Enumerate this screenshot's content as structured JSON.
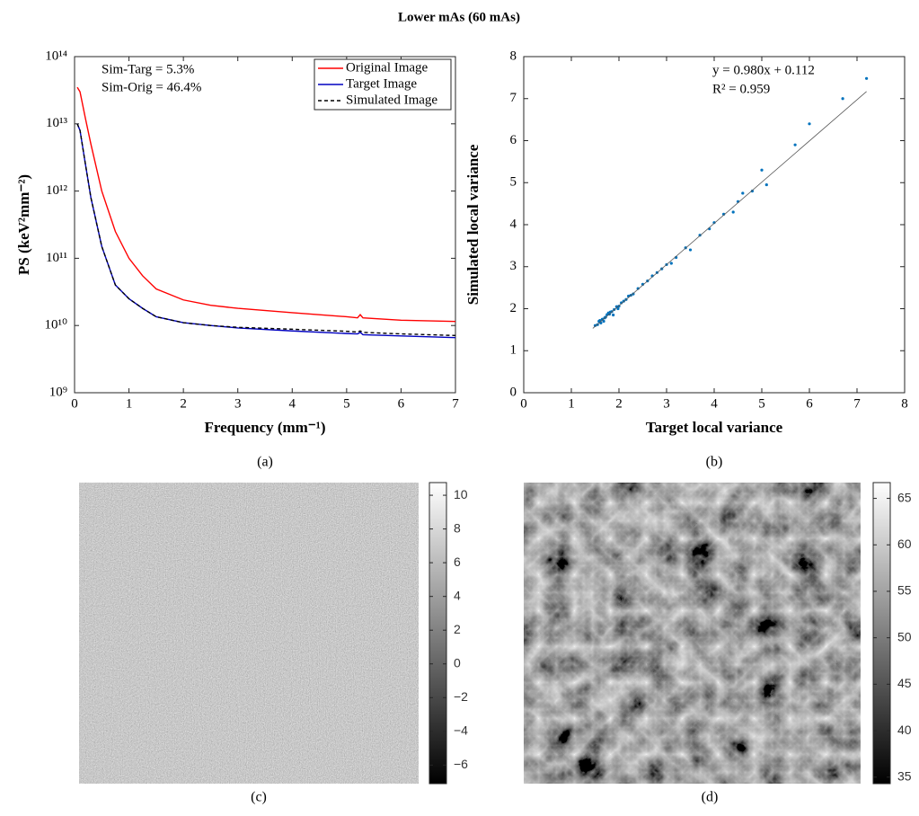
{
  "title": "Lower mAs (60 mAs)",
  "chart_data": [
    {
      "type": "line",
      "caption": "(a)",
      "xlabel": "Frequency (mm⁻¹)",
      "ylabel": "PS (keV²mm⁻²)",
      "log_y": true,
      "legend": "upper right",
      "annotations": [
        "Sim-Targ = 5.3%",
        "Sim-Orig = 46.4%"
      ],
      "x": [
        0.05,
        0.1,
        0.2,
        0.3,
        0.5,
        0.75,
        1,
        1.25,
        1.5,
        2,
        2.5,
        3,
        4,
        5,
        5.2,
        5.25,
        5.3,
        6,
        7
      ],
      "series": [
        {
          "name": "Original Image",
          "color": "#ff0000",
          "dash": false,
          "values": [
            35000000000000.0,
            30000000000000.0,
            12000000000000.0,
            5000000000000.0,
            1000000000000.0,
            250000000000.0,
            100000000000.0,
            55000000000.0,
            35000000000.0,
            24000000000.0,
            20000000000.0,
            18000000000.0,
            15500000000.0,
            13500000000.0,
            13000000000.0,
            14500000000.0,
            13000000000.0,
            12000000000.0,
            11500000000.0
          ]
        },
        {
          "name": "Target Image",
          "color": "#0000c0",
          "dash": false,
          "values": [
            10000000000000.0,
            8000000000000.0,
            2500000000000.0,
            800000000000.0,
            150000000000.0,
            40000000000.0,
            25000000000.0,
            18000000000.0,
            13500000000.0,
            11000000000.0,
            10000000000.0,
            9200000000.0,
            8300000000.0,
            7600000000.0,
            7500000000.0,
            7900000000.0,
            7300000000.0,
            7000000000.0,
            6600000000.0
          ]
        },
        {
          "name": "Simulated Image",
          "color": "#000000",
          "dash": true,
          "values": [
            10000000000000.0,
            8000000000000.0,
            2500000000000.0,
            800000000000.0,
            150000000000.0,
            40000000000.0,
            25000000000.0,
            18000000000.0,
            13500000000.0,
            11000000000.0,
            10000000000.0,
            9400000000.0,
            8800000000.0,
            8200000000.0,
            8000000000.0,
            8300000000.0,
            7900000000.0,
            7500000000.0,
            7100000000.0
          ]
        }
      ],
      "xlim": [
        0,
        7
      ],
      "xticks": [
        0,
        1,
        2,
        3,
        4,
        5,
        6,
        7
      ],
      "ylim": [
        1000000000.0,
        100000000000000.0
      ],
      "yticks": [
        {
          "value": 1000000000.0,
          "label": "10⁹"
        },
        {
          "value": 10000000000.0,
          "label": "10¹⁰"
        },
        {
          "value": 100000000000.0,
          "label": "10¹¹"
        },
        {
          "value": 1000000000000.0,
          "label": "10¹²"
        },
        {
          "value": 10000000000000.0,
          "label": "10¹³"
        },
        {
          "value": 100000000000000.0,
          "label": "10¹⁴"
        }
      ]
    },
    {
      "type": "scatter",
      "caption": "(b)",
      "xlabel": "Target local variance",
      "ylabel": "Simulated local variance",
      "color": "#0072bd",
      "annotations": [
        "y = 0.980x + 0.112",
        "R² = 0.959"
      ],
      "x": [
        1.5,
        1.55,
        1.6,
        1.62,
        1.65,
        1.7,
        1.72,
        1.75,
        1.8,
        1.82,
        1.85,
        1.9,
        1.95,
        2.0,
        2.05,
        2.1,
        2.15,
        2.2,
        2.3,
        2.4,
        2.5,
        2.6,
        2.7,
        2.8,
        2.9,
        3.0,
        3.1,
        3.2,
        3.4,
        3.5,
        3.7,
        3.9,
        4.0,
        4.2,
        4.4,
        4.5,
        4.6,
        4.8,
        5.0,
        5.1,
        5.7,
        6.0,
        6.7,
        7.2,
        1.58,
        1.68,
        1.78,
        1.88,
        1.98,
        2.25
      ],
      "values": [
        1.6,
        1.62,
        1.72,
        1.66,
        1.75,
        1.78,
        1.8,
        1.86,
        1.87,
        1.92,
        1.93,
        1.98,
        2.05,
        2.06,
        2.14,
        2.18,
        2.22,
        2.3,
        2.35,
        2.48,
        2.58,
        2.66,
        2.78,
        2.86,
        2.95,
        3.05,
        3.08,
        3.22,
        3.45,
        3.4,
        3.75,
        3.9,
        4.05,
        4.25,
        4.3,
        4.55,
        4.75,
        4.8,
        5.3,
        4.95,
        5.9,
        6.4,
        7.0,
        7.48,
        1.7,
        1.7,
        1.9,
        1.85,
        2.0,
        2.32
      ],
      "fit_line": {
        "x": [
          1.45,
          7.2
        ],
        "values": [
          1.53,
          7.17
        ]
      },
      "xlim": [
        0,
        8
      ],
      "xticks": [
        0,
        1,
        2,
        3,
        4,
        5,
        6,
        7,
        8
      ],
      "ylim": [
        0,
        8
      ],
      "yticks": [
        0,
        1,
        2,
        3,
        4,
        5,
        6,
        7,
        8
      ]
    },
    {
      "type": "image",
      "caption": "(c)",
      "clim": [
        -7.1,
        10.75
      ],
      "cticks": [
        {
          "value": -6,
          "label": "−6"
        },
        {
          "value": -4,
          "label": "−4"
        },
        {
          "value": -2,
          "label": "−2"
        },
        0,
        2,
        4,
        6,
        8,
        10
      ]
    },
    {
      "type": "image",
      "caption": "(d)",
      "clim": [
        34.3,
        66.7
      ],
      "cticks": [
        35,
        40,
        45,
        50,
        55,
        60,
        65
      ]
    }
  ]
}
